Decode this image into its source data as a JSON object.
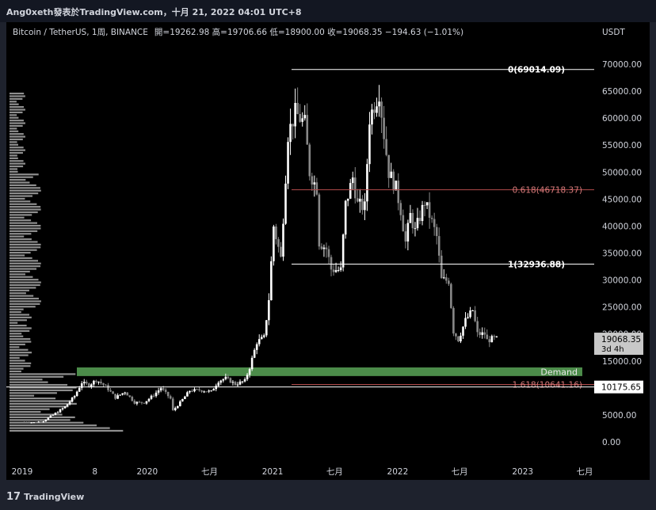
{
  "header": {
    "title": "Ang0xeth發表於TradingView.com，十月 21, 2022 04:01 UTC+8"
  },
  "legend": {
    "symbol": "Bitcoin / TetherUS, 1周, BINANCE",
    "ohlc": "開=19262.98  高=19706.66  低=18900.00  收=19068.35  −194.63 (−1.01%)"
  },
  "footer": {
    "brand": "TradingView"
  },
  "colors": {
    "up": "#ffffff",
    "down": "#888888",
    "fib_red": "#b24b4b",
    "demand": "#4c8c4a",
    "axis_text": "#d1d4dc",
    "price_box": "#c8c8c8",
    "background": "#000000"
  },
  "chart_data": {
    "type": "candlestick",
    "symbol": "BTCUSDT",
    "timeframe": "1W",
    "y_axis": {
      "unit": "USDT",
      "ylim": [
        0,
        70000
      ],
      "ticks": [
        "0.00",
        "5000.00",
        "10000.00",
        "15000.00",
        "20000.00",
        "25000.00",
        "30000.00",
        "35000.00",
        "40000.00",
        "45000.00",
        "50000.00",
        "55000.00",
        "60000.00",
        "65000.00",
        "70000.00"
      ]
    },
    "x_axis": {
      "labels": [
        "2019",
        "8",
        "2020",
        "七月",
        "2021",
        "七月",
        "2022",
        "七月",
        "2023",
        "七月"
      ],
      "label_dates": [
        "2019-01-01",
        "2019-08-01",
        "2020-01-01",
        "2020-07-01",
        "2021-01-01",
        "2021-07-01",
        "2022-01-01",
        "2022-07-01",
        "2023-01-01",
        "2023-07-01"
      ]
    },
    "close_series": [
      [
        "2019-01-07",
        3700
      ],
      [
        "2019-02-04",
        3600
      ],
      [
        "2019-03-04",
        3900
      ],
      [
        "2019-04-01",
        5000
      ],
      [
        "2019-05-06",
        6500
      ],
      [
        "2019-06-03",
        8500
      ],
      [
        "2019-06-24",
        11000
      ],
      [
        "2019-07-15",
        10500
      ],
      [
        "2019-08-05",
        11500
      ],
      [
        "2019-09-02",
        10300
      ],
      [
        "2019-09-30",
        8200
      ],
      [
        "2019-10-28",
        9300
      ],
      [
        "2019-11-25",
        7300
      ],
      [
        "2019-12-23",
        7300
      ],
      [
        "2020-01-20",
        8700
      ],
      [
        "2020-02-10",
        10000
      ],
      [
        "2020-03-09",
        8000
      ],
      [
        "2020-03-16",
        5800
      ],
      [
        "2020-04-06",
        7300
      ],
      [
        "2020-05-04",
        9500
      ],
      [
        "2020-06-01",
        9600
      ],
      [
        "2020-07-06",
        9300
      ],
      [
        "2020-07-27",
        11300
      ],
      [
        "2020-08-17",
        11800
      ],
      [
        "2020-09-14",
        10700
      ],
      [
        "2020-10-12",
        11300
      ],
      [
        "2020-10-26",
        13800
      ],
      [
        "2020-11-16",
        18500
      ],
      [
        "2020-12-07",
        19300
      ],
      [
        "2020-12-21",
        26500
      ],
      [
        "2021-01-04",
        40000
      ],
      [
        "2021-01-25",
        34000
      ],
      [
        "2021-02-15",
        57000
      ],
      [
        "2021-03-08",
        61000
      ],
      [
        "2021-04-05",
        59000
      ],
      [
        "2021-04-19",
        50000
      ],
      [
        "2021-05-10",
        47000
      ],
      [
        "2021-05-17",
        37000
      ],
      [
        "2021-06-07",
        35800
      ],
      [
        "2021-06-21",
        32000
      ],
      [
        "2021-07-19",
        31800
      ],
      [
        "2021-08-02",
        44000
      ],
      [
        "2021-08-23",
        49000
      ],
      [
        "2021-09-06",
        44000
      ],
      [
        "2021-09-27",
        43500
      ],
      [
        "2021-10-11",
        60000
      ],
      [
        "2021-11-08",
        65000
      ],
      [
        "2021-11-22",
        57000
      ],
      [
        "2021-12-06",
        50000
      ],
      [
        "2021-12-27",
        47000
      ],
      [
        "2022-01-10",
        43000
      ],
      [
        "2022-01-24",
        37000
      ],
      [
        "2022-02-07",
        42000
      ],
      [
        "2022-02-21",
        39000
      ],
      [
        "2022-03-21",
        44500
      ],
      [
        "2022-04-04",
        42000
      ],
      [
        "2022-04-25",
        38000
      ],
      [
        "2022-05-09",
        30000
      ],
      [
        "2022-05-30",
        29900
      ],
      [
        "2022-06-13",
        20500
      ],
      [
        "2022-06-27",
        19000
      ],
      [
        "2022-07-18",
        22500
      ],
      [
        "2022-08-08",
        24400
      ],
      [
        "2022-08-22",
        20000
      ],
      [
        "2022-09-12",
        20000
      ],
      [
        "2022-09-19",
        18800
      ],
      [
        "2022-10-10",
        19200
      ],
      [
        "2022-10-17",
        19068
      ]
    ],
    "horizontal_levels": [
      {
        "label": "0(69014.09)",
        "value": 69014.09,
        "color": "#ffffff"
      },
      {
        "label": "0.618(46718.37)",
        "value": 46718.37,
        "color": "#b24b4b"
      },
      {
        "label": "1(32936.88)",
        "value": 32936.88,
        "color": "#ffffff"
      },
      {
        "label": "1.618(10641.16)",
        "value": 10641.16,
        "color": "#b24b4b"
      }
    ],
    "zones": [
      {
        "label": "Demand",
        "from": 12200,
        "to": 13800,
        "color": "#4c8c4a"
      }
    ],
    "price_labels": [
      {
        "value": 19068.35,
        "text": "19068.35",
        "subtext": "3d 4h",
        "style": "grey"
      },
      {
        "value": 10175.65,
        "text": "10175.65",
        "style": "white"
      }
    ],
    "volume_profile": true,
    "grid": false
  }
}
